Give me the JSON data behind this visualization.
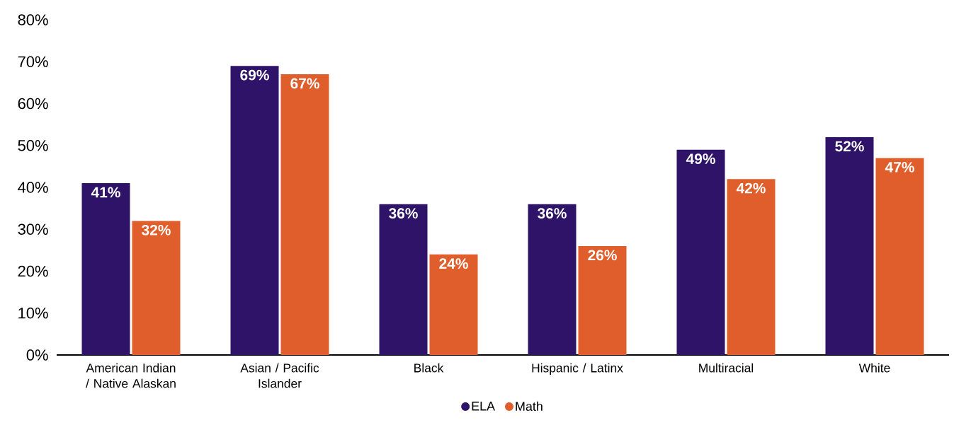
{
  "chart_data": {
    "type": "bar",
    "categories": [
      "American Indian / Native Alaskan",
      "Asian / Pacific Islander",
      "Black",
      "Hispanic / Latinx",
      "Multiracial",
      "White"
    ],
    "series": [
      {
        "name": "ELA",
        "color": "#2e1368",
        "values": [
          41,
          69,
          36,
          36,
          49,
          52
        ],
        "value_labels": [
          "41%",
          "69%",
          "36%",
          "36%",
          "49%",
          "52%"
        ]
      },
      {
        "name": "Math",
        "color": "#e05e2b",
        "values": [
          32,
          67,
          24,
          26,
          42,
          47
        ],
        "value_labels": [
          "32%",
          "67%",
          "24%",
          "26%",
          "42%",
          "47%"
        ]
      }
    ],
    "ylim": [
      0,
      80
    ],
    "yticks": [
      {
        "value": 0,
        "label": "0%"
      },
      {
        "value": 10,
        "label": "10%"
      },
      {
        "value": 20,
        "label": "20%"
      },
      {
        "value": 30,
        "label": "30%"
      },
      {
        "value": 40,
        "label": "40%"
      },
      {
        "value": 50,
        "label": "50%"
      },
      {
        "value": 60,
        "label": "60%"
      },
      {
        "value": 70,
        "label": "70%"
      },
      {
        "value": 80,
        "label": "80%"
      }
    ],
    "grid": false,
    "legend": "bottom"
  }
}
